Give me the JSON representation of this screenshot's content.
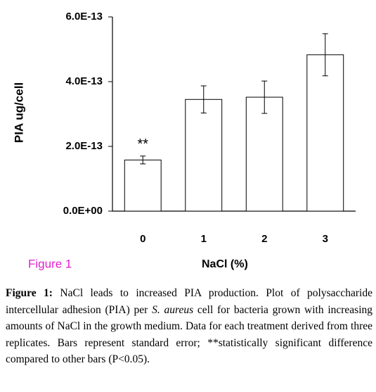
{
  "chart_data": {
    "type": "bar",
    "y_label": "PIA ug/cell",
    "x_label": "NaCl (%)",
    "figure_tag": "Figure 1",
    "annotation": "**",
    "categories": [
      "0",
      "1",
      "2",
      "3"
    ],
    "values": [
      1.58e-13,
      3.45e-13,
      3.52e-13,
      4.83e-13
    ],
    "errors": [
      1.2e-14,
      4.2e-14,
      5e-14,
      6.5e-14
    ],
    "color": "#ffffff",
    "ylim": [
      0,
      6e-13
    ],
    "yticks": [
      {
        "value": 0,
        "label": "0.0E+00"
      },
      {
        "value": 2e-13,
        "label": "2.0E-13"
      },
      {
        "value": 4e-13,
        "label": "4.0E-13"
      },
      {
        "value": 6e-13,
        "label": "6.0E-13"
      }
    ]
  },
  "caption": {
    "label": "Figure 1:",
    "text_before": "NaCl leads to increased PIA production. Plot of polysaccharide intercellular adhesion (PIA) per",
    "species": "S. aureus",
    "text_after": "cell for bacteria grown with increasing amounts of NaCl in the growth medium. Data for each treatment derived from three replicates. Bars represent standard error; **statistically significant difference compared to other bars (P<0.05)."
  }
}
